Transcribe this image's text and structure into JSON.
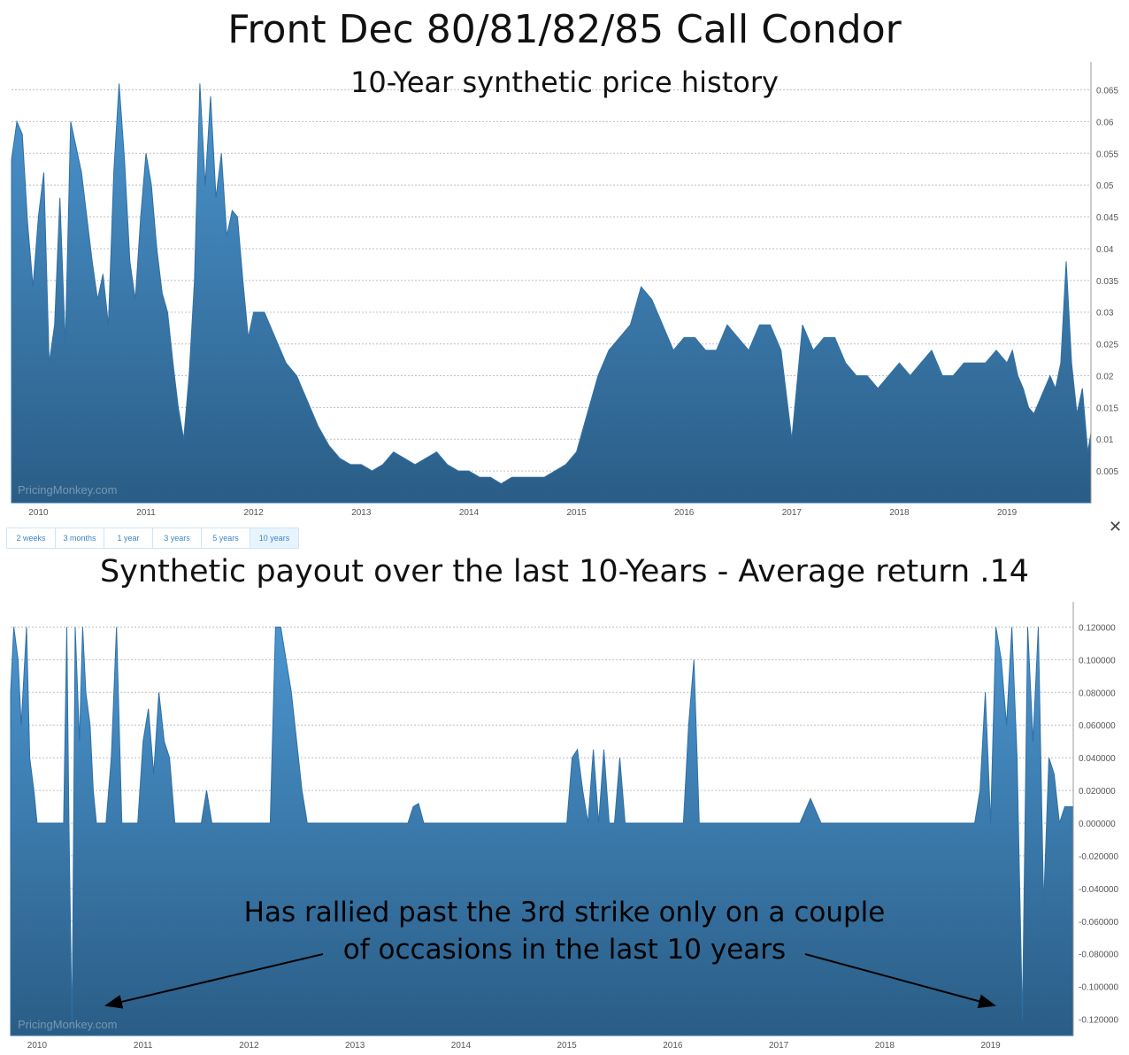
{
  "header": {
    "title": "Front Dec 80/81/82/85 Call Condor"
  },
  "range_selector": {
    "buttons": [
      "2 weeks",
      "3 months",
      "1 year",
      "3 years",
      "5 years",
      "10 years"
    ],
    "active": "10 years"
  },
  "close_label": "✕",
  "watermark": "PricingMonkey.com",
  "annotation": {
    "line1": "Has rallied past the 3rd strike only on a couple",
    "line2": "of occasions in the last 10 years"
  },
  "colors": {
    "area_top": "#4b95cf",
    "area_bottom": "#2a5d86",
    "grid": "#bfbfbf",
    "accent": "#3d86c6"
  },
  "chart_data": [
    {
      "type": "area",
      "title": "10-Year synthetic price history",
      "x_ticks": [
        "2010",
        "2011",
        "2012",
        "2013",
        "2014",
        "2015",
        "2016",
        "2017",
        "2018",
        "2019"
      ],
      "y_ticks": [
        "0.005",
        "0.01",
        "0.015",
        "0.02",
        "0.025",
        "0.03",
        "0.035",
        "0.04",
        "0.045",
        "0.05",
        "0.055",
        "0.06",
        "0.065"
      ],
      "ylim": [
        0.0,
        0.068
      ],
      "xlim": [
        2009.75,
        2019.78
      ],
      "grid": true,
      "series": [
        {
          "x": [
            2009.75,
            2009.8,
            2009.85,
            2009.9,
            2009.95,
            2010.0,
            2010.05,
            2010.1,
            2010.15,
            2010.2,
            2010.25,
            2010.3,
            2010.35,
            2010.4,
            2010.45,
            2010.5,
            2010.55,
            2010.6,
            2010.65,
            2010.7,
            2010.75,
            2010.8,
            2010.85,
            2010.9,
            2010.95,
            2011.0,
            2011.05,
            2011.1,
            2011.15,
            2011.2,
            2011.25,
            2011.3,
            2011.35,
            2011.4,
            2011.45,
            2011.5,
            2011.55,
            2011.6,
            2011.65,
            2011.7,
            2011.75,
            2011.8,
            2011.85,
            2011.9,
            2011.95,
            2012.0,
            2012.1,
            2012.2,
            2012.3,
            2012.4,
            2012.5,
            2012.6,
            2012.7,
            2012.8,
            2012.9,
            2013.0,
            2013.1,
            2013.2,
            2013.3,
            2013.4,
            2013.5,
            2013.6,
            2013.7,
            2013.8,
            2013.9,
            2014.0,
            2014.1,
            2014.2,
            2014.3,
            2014.4,
            2014.5,
            2014.6,
            2014.7,
            2014.8,
            2014.9,
            2015.0,
            2015.1,
            2015.2,
            2015.3,
            2015.4,
            2015.5,
            2015.6,
            2015.7,
            2015.8,
            2015.9,
            2016.0,
            2016.1,
            2016.2,
            2016.3,
            2016.4,
            2016.5,
            2016.6,
            2016.7,
            2016.8,
            2016.9,
            2017.0,
            2017.1,
            2017.2,
            2017.3,
            2017.4,
            2017.5,
            2017.6,
            2017.7,
            2017.8,
            2017.9,
            2018.0,
            2018.1,
            2018.2,
            2018.3,
            2018.4,
            2018.5,
            2018.6,
            2018.7,
            2018.8,
            2018.9,
            2019.0,
            2019.05,
            2019.1,
            2019.15,
            2019.2,
            2019.25,
            2019.3,
            2019.35,
            2019.4,
            2019.45,
            2019.5,
            2019.55,
            2019.6,
            2019.65,
            2019.7,
            2019.75,
            2019.78
          ],
          "y": [
            0.054,
            0.06,
            0.058,
            0.044,
            0.034,
            0.045,
            0.052,
            0.022,
            0.028,
            0.048,
            0.025,
            0.06,
            0.056,
            0.052,
            0.045,
            0.038,
            0.032,
            0.036,
            0.028,
            0.052,
            0.066,
            0.054,
            0.038,
            0.032,
            0.045,
            0.055,
            0.05,
            0.04,
            0.033,
            0.03,
            0.022,
            0.015,
            0.01,
            0.02,
            0.035,
            0.066,
            0.05,
            0.064,
            0.048,
            0.055,
            0.042,
            0.046,
            0.045,
            0.035,
            0.026,
            0.03,
            0.03,
            0.026,
            0.022,
            0.02,
            0.016,
            0.012,
            0.009,
            0.007,
            0.006,
            0.006,
            0.005,
            0.006,
            0.008,
            0.007,
            0.006,
            0.007,
            0.008,
            0.006,
            0.005,
            0.005,
            0.004,
            0.004,
            0.003,
            0.004,
            0.004,
            0.004,
            0.004,
            0.005,
            0.006,
            0.008,
            0.014,
            0.02,
            0.024,
            0.026,
            0.028,
            0.034,
            0.032,
            0.028,
            0.024,
            0.026,
            0.026,
            0.024,
            0.024,
            0.028,
            0.026,
            0.024,
            0.028,
            0.028,
            0.024,
            0.01,
            0.028,
            0.024,
            0.026,
            0.026,
            0.022,
            0.02,
            0.02,
            0.018,
            0.02,
            0.022,
            0.02,
            0.022,
            0.024,
            0.02,
            0.02,
            0.022,
            0.022,
            0.022,
            0.024,
            0.022,
            0.024,
            0.02,
            0.018,
            0.015,
            0.014,
            0.016,
            0.018,
            0.02,
            0.018,
            0.022,
            0.038,
            0.022,
            0.014,
            0.018,
            0.008,
            0.011
          ]
        }
      ]
    },
    {
      "type": "area",
      "title": "Synthetic payout over the last 10-Years - Average return .14",
      "x_ticks": [
        "2010",
        "2011",
        "2012",
        "2013",
        "2014",
        "2015",
        "2016",
        "2017",
        "2018",
        "2019"
      ],
      "y_ticks": [
        "0.120000",
        "0.100000",
        "0.080000",
        "0.060000",
        "0.040000",
        "0.020000",
        "0.000000",
        "-0.020000",
        "-0.040000",
        "-0.060000",
        "-0.080000",
        "-0.100000",
        "-0.120000"
      ],
      "ylim": [
        -0.13,
        0.13
      ],
      "xlim": [
        2009.75,
        2019.78
      ],
      "grid": true,
      "series": [
        {
          "x": [
            2009.75,
            2009.78,
            2009.82,
            2009.85,
            2009.9,
            2009.93,
            2009.97,
            2010.0,
            2010.05,
            2010.1,
            2010.15,
            2010.2,
            2010.25,
            2010.28,
            2010.3,
            2010.33,
            2010.36,
            2010.4,
            2010.43,
            2010.46,
            2010.5,
            2010.53,
            2010.56,
            2010.6,
            2010.65,
            2010.7,
            2010.75,
            2010.8,
            2010.85,
            2010.9,
            2010.95,
            2011.0,
            2011.05,
            2011.1,
            2011.15,
            2011.2,
            2011.25,
            2011.3,
            2011.35,
            2011.4,
            2011.45,
            2011.5,
            2011.55,
            2011.6,
            2011.65,
            2011.7,
            2011.75,
            2011.8,
            2011.85,
            2011.9,
            2011.95,
            2012.0,
            2012.05,
            2012.1,
            2012.15,
            2012.2,
            2012.25,
            2012.3,
            2012.35,
            2012.4,
            2012.45,
            2012.5,
            2012.55,
            2012.6,
            2012.7,
            2012.8,
            2012.9,
            2013.0,
            2013.2,
            2013.4,
            2013.45,
            2013.5,
            2013.55,
            2013.6,
            2013.65,
            2013.7,
            2013.8,
            2014.0,
            2014.2,
            2014.4,
            2014.6,
            2014.8,
            2015.0,
            2015.05,
            2015.1,
            2015.15,
            2015.2,
            2015.25,
            2015.3,
            2015.35,
            2015.4,
            2015.45,
            2015.5,
            2015.55,
            2015.6,
            2015.7,
            2015.8,
            2015.9,
            2016.0,
            2016.1,
            2016.15,
            2016.2,
            2016.25,
            2016.3,
            2016.4,
            2016.5,
            2016.6,
            2016.7,
            2016.8,
            2016.9,
            2016.95,
            2017.0,
            2017.1,
            2017.2,
            2017.3,
            2017.4,
            2017.5,
            2017.6,
            2017.7,
            2017.8,
            2017.9,
            2018.0,
            2018.1,
            2018.2,
            2018.3,
            2018.35,
            2018.4,
            2018.45,
            2018.5,
            2018.55,
            2018.6,
            2018.65,
            2018.7,
            2018.75,
            2018.8,
            2018.85,
            2018.9,
            2018.95,
            2019.0,
            2019.05,
            2019.1,
            2019.15,
            2019.2,
            2019.25,
            2019.3,
            2019.35,
            2019.4,
            2019.45,
            2019.5,
            2019.55,
            2019.6,
            2019.65,
            2019.7,
            2019.75,
            2019.78
          ],
          "y": [
            0.08,
            0.12,
            0.1,
            0.06,
            0.12,
            0.04,
            0.02,
            0.0,
            0.0,
            0.0,
            0.0,
            0.0,
            0.0,
            0.12,
            0.0,
            -0.125,
            0.12,
            0.05,
            0.12,
            0.08,
            0.06,
            0.02,
            0.0,
            0.0,
            0.0,
            0.04,
            0.12,
            0.0,
            0.0,
            0.0,
            0.0,
            0.05,
            0.07,
            0.03,
            0.08,
            0.05,
            0.04,
            0.0,
            0.0,
            0.0,
            0.0,
            0.0,
            0.0,
            0.02,
            0.0,
            0.0,
            0.0,
            0.0,
            0.0,
            0.0,
            0.0,
            0.0,
            0.0,
            0.0,
            0.0,
            0.0,
            0.12,
            0.12,
            0.1,
            0.08,
            0.05,
            0.02,
            0.0,
            0.0,
            0.0,
            0.0,
            0.0,
            0.0,
            0.0,
            0.0,
            0.0,
            0.0,
            0.01,
            0.012,
            0.0,
            0.0,
            0.0,
            0.0,
            0.0,
            0.0,
            0.0,
            0.0,
            0.0,
            0.04,
            0.045,
            0.02,
            0.0,
            0.045,
            0.0,
            0.045,
            0.0,
            0.0,
            0.04,
            0.0,
            0.0,
            0.0,
            0.0,
            0.0,
            0.0,
            0.0,
            0.06,
            0.1,
            0.0,
            0.0,
            0.0,
            0.0,
            0.0,
            0.0,
            0.0,
            0.0,
            0.0,
            0.0,
            0.0,
            0.0,
            0.015,
            0.0,
            0.0,
            0.0,
            0.0,
            0.0,
            0.0,
            0.0,
            0.0,
            0.0,
            0.0,
            0.0,
            0.0,
            0.0,
            0.0,
            0.0,
            0.0,
            0.0,
            0.0,
            0.0,
            0.0,
            0.0,
            0.02,
            0.08,
            0.0,
            0.12,
            0.1,
            0.06,
            0.12,
            0.04,
            -0.12,
            0.12,
            0.05,
            0.12,
            -0.05,
            0.04,
            0.03,
            0.0,
            0.01,
            0.01,
            0.01
          ]
        }
      ]
    }
  ]
}
